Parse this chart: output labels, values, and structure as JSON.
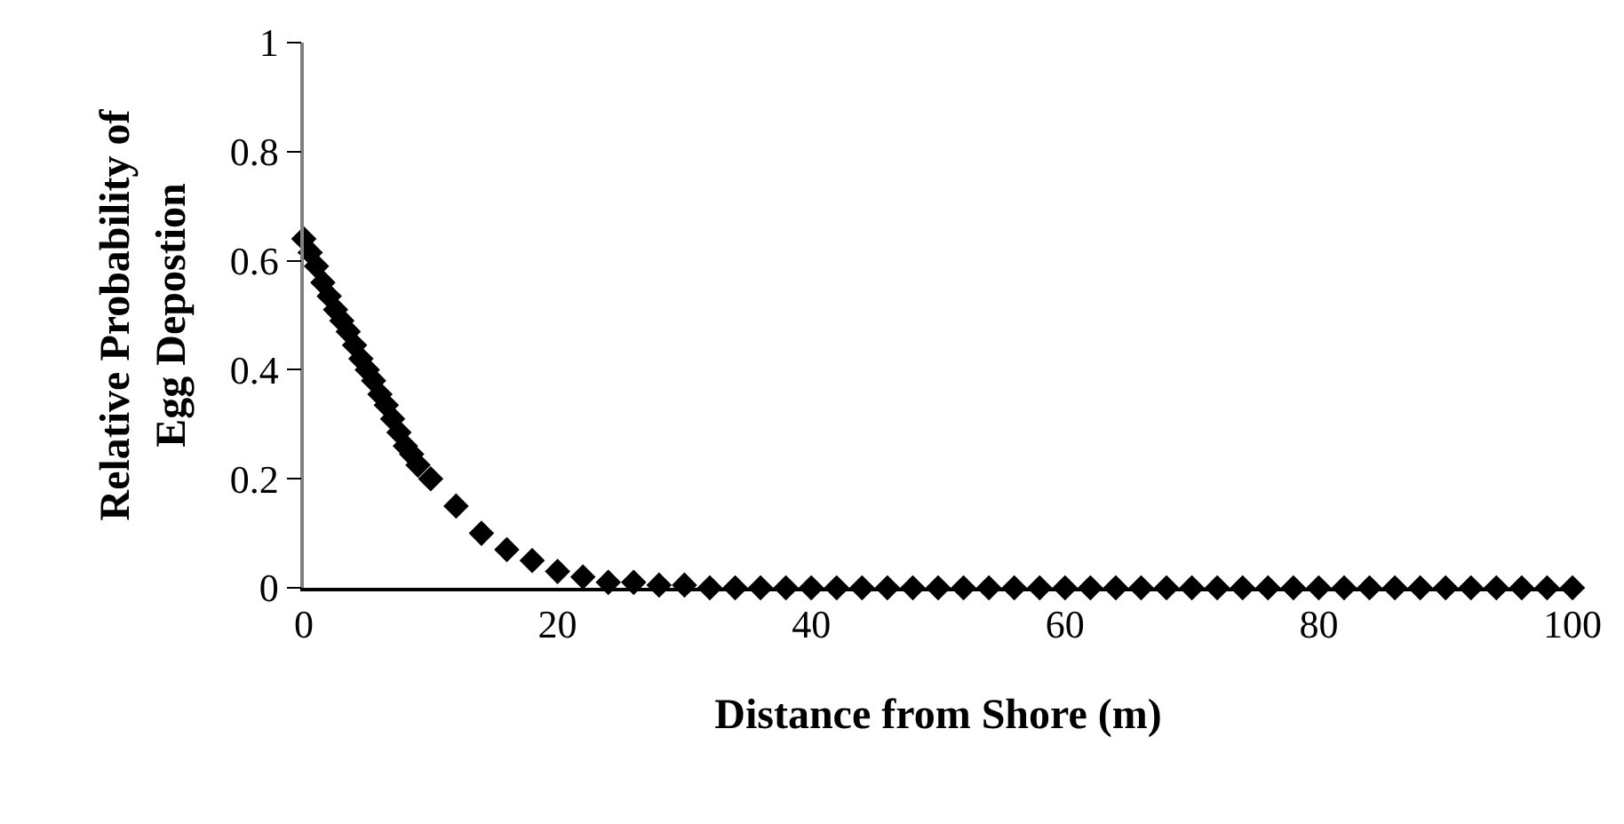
{
  "chart_data": {
    "type": "scatter",
    "xlabel": "Distance from Shore (m)",
    "ylabel": "Relative Probability of\nEgg Depostion",
    "x": [
      0,
      0.5,
      1,
      1.5,
      2,
      2.5,
      3,
      3.5,
      4,
      4.5,
      5,
      5.5,
      6,
      6.5,
      7,
      7.5,
      8,
      8.5,
      9,
      10,
      12,
      14,
      16,
      18,
      20,
      22,
      24,
      26,
      28,
      30,
      32,
      34,
      36,
      38,
      40,
      42,
      44,
      46,
      48,
      50,
      52,
      54,
      56,
      58,
      60,
      62,
      64,
      66,
      68,
      70,
      72,
      74,
      76,
      78,
      80,
      82,
      84,
      86,
      88,
      90,
      92,
      94,
      96,
      98,
      100
    ],
    "series": [
      {
        "color": "#000000",
        "values": [
          0.64,
          0.615,
          0.59,
          0.56,
          0.535,
          0.51,
          0.49,
          0.47,
          0.445,
          0.42,
          0.4,
          0.38,
          0.355,
          0.335,
          0.31,
          0.285,
          0.26,
          0.245,
          0.225,
          0.2,
          0.15,
          0.1,
          0.07,
          0.05,
          0.03,
          0.02,
          0.01,
          0.01,
          0.005,
          0.005,
          0,
          0,
          0,
          0,
          0,
          0,
          0,
          0,
          0,
          0,
          0,
          0,
          0,
          0,
          0,
          0,
          0,
          0,
          0,
          0,
          0,
          0,
          0,
          0,
          0,
          0,
          0,
          0,
          0,
          0,
          0,
          0,
          0,
          0,
          0
        ]
      }
    ],
    "marker": "diamond",
    "xlim": [
      0,
      100
    ],
    "xticks": [
      0,
      20,
      40,
      60,
      80,
      100
    ],
    "ylim": [
      0,
      1
    ],
    "yticks": [
      0,
      0.2,
      0.4,
      0.6,
      0.8,
      1
    ],
    "grid": false
  }
}
